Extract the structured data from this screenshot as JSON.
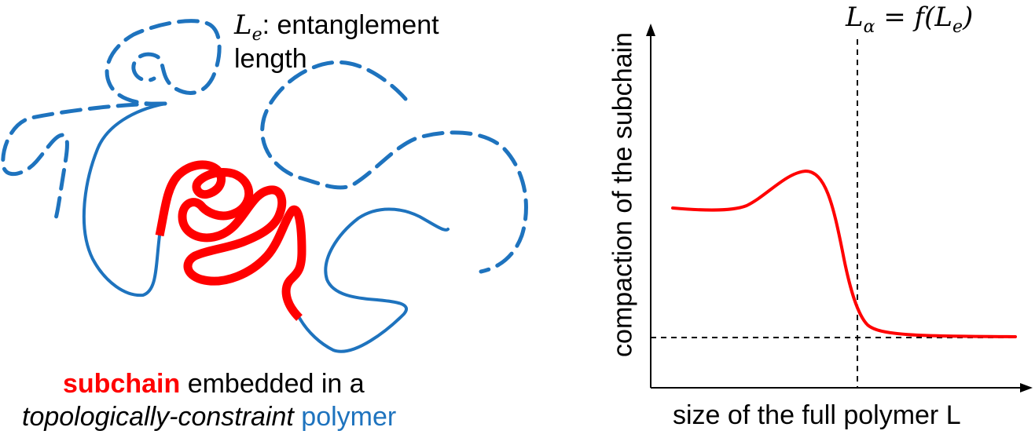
{
  "left_panel": {
    "le_symbol": "L",
    "le_subscript": "e",
    "le_label": ": entanglement",
    "le_label_line2": "length",
    "caption_line1_red": "subchain",
    "caption_line1_rest": " embedded in a",
    "caption_line2_italic": "topologically-constraint",
    "caption_line2_blue": " polymer"
  },
  "right_panel": {
    "threshold_label_sym": "L",
    "threshold_label_sub": "α",
    "threshold_label_eq": " = f(",
    "threshold_label_sym2": "L",
    "threshold_label_sub2": "e",
    "threshold_label_close": ")",
    "ylabel": "compaction of the subchain",
    "xlabel": "size of the full polymer L"
  },
  "colors": {
    "polymer_blue": "#1e73be",
    "subchain_red": "#ff0000",
    "axis": "#000000"
  }
}
